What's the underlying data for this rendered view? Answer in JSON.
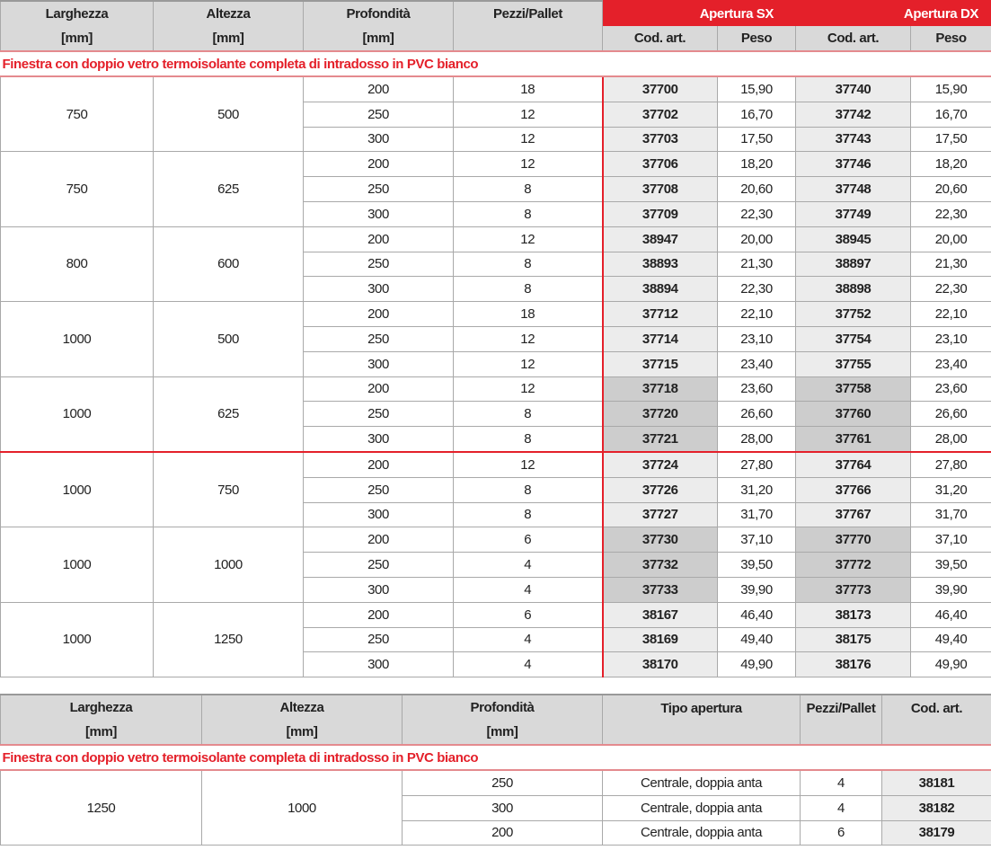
{
  "table1": {
    "headers": {
      "larghezza": "Larghezza",
      "altezza": "Altezza",
      "profondita": "Profondità",
      "unit": "[mm]",
      "pezzi": "Pezzi/Pallet",
      "apertura_sx": "Apertura SX",
      "apertura_dx": "Apertura DX",
      "cod": "Cod. art.",
      "peso": "Peso"
    },
    "subtitle": "Finestra con doppio vetro termoisolante completa di intradosso in PVC bianco",
    "accent_color": "#e4202a",
    "groups": [
      {
        "larghezza": "750",
        "altezza": "500",
        "shade": "light",
        "rows": [
          [
            "200",
            "18",
            "37700",
            "15,90",
            "37740",
            "15,90"
          ],
          [
            "250",
            "12",
            "37702",
            "16,70",
            "37742",
            "16,70"
          ],
          [
            "300",
            "12",
            "37703",
            "17,50",
            "37743",
            "17,50"
          ]
        ]
      },
      {
        "larghezza": "750",
        "altezza": "625",
        "shade": "light",
        "rows": [
          [
            "200",
            "12",
            "37706",
            "18,20",
            "37746",
            "18,20"
          ],
          [
            "250",
            "8",
            "37708",
            "20,60",
            "37748",
            "20,60"
          ],
          [
            "300",
            "8",
            "37709",
            "22,30",
            "37749",
            "22,30"
          ]
        ]
      },
      {
        "larghezza": "800",
        "altezza": "600",
        "shade": "light",
        "rows": [
          [
            "200",
            "12",
            "38947",
            "20,00",
            "38945",
            "20,00"
          ],
          [
            "250",
            "8",
            "38893",
            "21,30",
            "38897",
            "21,30"
          ],
          [
            "300",
            "8",
            "38894",
            "22,30",
            "38898",
            "22,30"
          ]
        ]
      },
      {
        "larghezza": "1000",
        "altezza": "500",
        "shade": "light",
        "rows": [
          [
            "200",
            "18",
            "37712",
            "22,10",
            "37752",
            "22,10"
          ],
          [
            "250",
            "12",
            "37714",
            "23,10",
            "37754",
            "23,10"
          ],
          [
            "300",
            "12",
            "37715",
            "23,40",
            "37755",
            "23,40"
          ]
        ]
      },
      {
        "larghezza": "1000",
        "altezza": "625",
        "shade": "dark",
        "rows": [
          [
            "200",
            "12",
            "37718",
            "23,60",
            "37758",
            "23,60"
          ],
          [
            "250",
            "8",
            "37720",
            "26,60",
            "37760",
            "26,60"
          ],
          [
            "300",
            "8",
            "37721",
            "28,00",
            "37761",
            "28,00"
          ]
        ]
      },
      {
        "larghezza": "1000",
        "altezza": "750",
        "shade": "light",
        "redtop": true,
        "rows": [
          [
            "200",
            "12",
            "37724",
            "27,80",
            "37764",
            "27,80"
          ],
          [
            "250",
            "8",
            "37726",
            "31,20",
            "37766",
            "31,20"
          ],
          [
            "300",
            "8",
            "37727",
            "31,70",
            "37767",
            "31,70"
          ]
        ]
      },
      {
        "larghezza": "1000",
        "altezza": "1000",
        "shade": "dark",
        "rows": [
          [
            "200",
            "6",
            "37730",
            "37,10",
            "37770",
            "37,10"
          ],
          [
            "250",
            "4",
            "37732",
            "39,50",
            "37772",
            "39,50"
          ],
          [
            "300",
            "4",
            "37733",
            "39,90",
            "37773",
            "39,90"
          ]
        ]
      },
      {
        "larghezza": "1000",
        "altezza": "1250",
        "shade": "light",
        "rows": [
          [
            "200",
            "6",
            "38167",
            "46,40",
            "38173",
            "46,40"
          ],
          [
            "250",
            "4",
            "38169",
            "49,40",
            "38175",
            "49,40"
          ],
          [
            "300",
            "4",
            "38170",
            "49,90",
            "38176",
            "49,90"
          ]
        ]
      }
    ]
  },
  "table2": {
    "headers": {
      "larghezza": "Larghezza",
      "altezza": "Altezza",
      "profondita": "Profondità",
      "unit": "[mm]",
      "tipo": "Tipo apertura",
      "pezzi": "Pezzi/Pallet",
      "cod": "Cod. art."
    },
    "subtitle": "Finestra con doppio vetro termoisolante completa di intradosso in PVC bianco",
    "larghezza": "1250",
    "altezza": "1000",
    "rows": [
      [
        "250",
        "Centrale, doppia anta",
        "4",
        "38181"
      ],
      [
        "300",
        "Centrale, doppia anta",
        "4",
        "38182"
      ],
      [
        "200",
        "Centrale, doppia anta",
        "6",
        "38179"
      ]
    ]
  }
}
